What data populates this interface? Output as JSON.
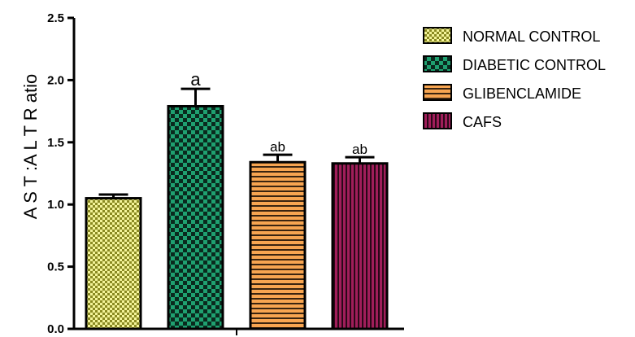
{
  "chart_data": {
    "type": "bar",
    "title": "",
    "xlabel": "",
    "ylabel": "A S T :A L T  R atio",
    "ylim": [
      0,
      2.5
    ],
    "yticks": [
      "0.0",
      "0.5",
      "1.0",
      "1.5",
      "2.0",
      "2.5"
    ],
    "grid": false,
    "legend_position": "right",
    "categories": [
      "NORMAL CONTROL",
      "DIABETIC CONTROL",
      "GLIBENCLAMIDE",
      "CAFS"
    ],
    "values": [
      1.05,
      1.79,
      1.34,
      1.33
    ],
    "errors": [
      0.03,
      0.14,
      0.06,
      0.05
    ],
    "significance": [
      "",
      "a",
      "ab",
      "ab"
    ],
    "colors": [
      "#c8c84a",
      "#1a9a6a",
      "#f5a04a",
      "#9a1c56"
    ],
    "patterns": [
      "checker-small",
      "checker-large",
      "horizontal-lines",
      "vertical-lines"
    ]
  }
}
